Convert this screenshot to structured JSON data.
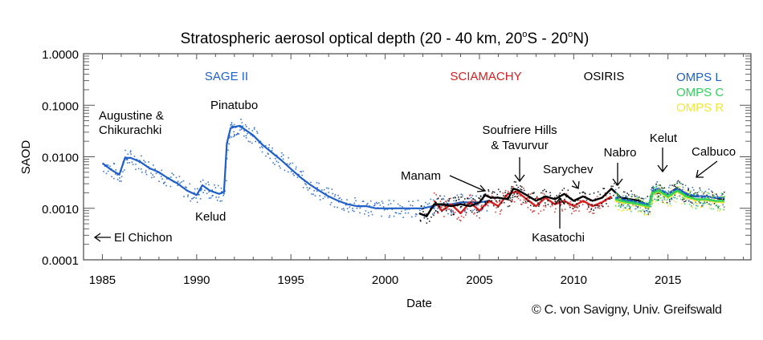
{
  "chart_data": {
    "type": "scatter",
    "title": "Stratospheric aerosol optical depth (20 - 40 km, 20°S - 20°N)",
    "title_parts": {
      "main": "Stratospheric aerosol optical depth (20 - 40 km, 20",
      "deg1": "o",
      "mid": "S - 20",
      "deg2": "o",
      "end": "N)"
    },
    "xlabel": "Date",
    "ylabel": "SAOD",
    "yscale": "log",
    "xlim": [
      1984.0,
      2019.4
    ],
    "ylim": [
      0.0001,
      1.0
    ],
    "xticks": [
      1985,
      1990,
      1995,
      2000,
      2005,
      2010,
      2015
    ],
    "xtick_labels": [
      "1985",
      "1990",
      "1995",
      "2000",
      "2005",
      "2010",
      "2015"
    ],
    "yticks": [
      1.0,
      0.1,
      0.01,
      0.001,
      0.0001
    ],
    "ytick_labels": [
      "1.0000",
      "0.1000",
      "0.0100",
      "0.0010",
      "0.0001"
    ],
    "instrument_labels": [
      {
        "name": "SAGE II",
        "color": "#1f5fc8"
      },
      {
        "name": "SCIAMACHY",
        "color": "#d42020"
      },
      {
        "name": "OSIRIS",
        "color": "#000000"
      },
      {
        "name": "OMPS L",
        "color": "#1f5fc8"
      },
      {
        "name": "OMPS C",
        "color": "#2fd35a"
      },
      {
        "name": "OMPS R",
        "color": "#f2e83a"
      }
    ],
    "series": [
      {
        "name": "SAGE II",
        "color": "#1f5fc8",
        "x": [
          1985.0,
          1985.5,
          1985.9,
          1986.2,
          1986.5,
          1987.0,
          1987.5,
          1988.0,
          1988.5,
          1989.0,
          1989.5,
          1990.0,
          1990.3,
          1990.7,
          1991.2,
          1991.45,
          1991.6,
          1991.8,
          1992.0,
          1992.3,
          1992.6,
          1993.0,
          1993.5,
          1994.0,
          1994.5,
          1995.0,
          1995.5,
          1996.0,
          1996.5,
          1997.0,
          1997.5,
          1998.0,
          1998.5,
          1999.0,
          1999.5,
          2000.0,
          2000.5,
          2001.0,
          2001.5,
          2002.0,
          2002.5,
          2003.0,
          2003.5,
          2004.0,
          2004.5,
          2005.0,
          2005.5
        ],
        "y": [
          0.0075,
          0.0055,
          0.0045,
          0.0095,
          0.0095,
          0.008,
          0.006,
          0.005,
          0.0038,
          0.003,
          0.0022,
          0.0018,
          0.0028,
          0.0022,
          0.0019,
          0.0021,
          0.018,
          0.036,
          0.038,
          0.04,
          0.033,
          0.026,
          0.017,
          0.012,
          0.0085,
          0.0058,
          0.004,
          0.0029,
          0.0022,
          0.0017,
          0.0014,
          0.0012,
          0.0011,
          0.0011,
          0.001,
          0.001,
          0.001,
          0.001,
          0.001,
          0.001,
          0.0011,
          0.0012,
          0.0012,
          0.0013,
          0.0013,
          0.0013,
          0.0014
        ]
      },
      {
        "name": "SCIAMACHY",
        "color": "#d42020",
        "x": [
          2002.6,
          2003.0,
          2003.5,
          2004.0,
          2004.5,
          2005.0,
          2005.5,
          2006.0,
          2006.5,
          2007.0,
          2007.5,
          2008.0,
          2008.5,
          2009.0,
          2009.5,
          2010.0,
          2010.5,
          2011.0,
          2011.5,
          2012.0
        ],
        "y": [
          0.0014,
          0.0009,
          0.0012,
          0.0008,
          0.0013,
          0.0009,
          0.0014,
          0.0011,
          0.0019,
          0.0021,
          0.0015,
          0.0011,
          0.0016,
          0.0012,
          0.0014,
          0.0011,
          0.0014,
          0.0011,
          0.0013,
          0.0017
        ]
      },
      {
        "name": "OSIRIS",
        "color": "#000000",
        "x": [
          2001.8,
          2002.2,
          2002.6,
          2003.0,
          2003.5,
          2004.0,
          2004.5,
          2005.0,
          2005.3,
          2005.6,
          2006.0,
          2006.5,
          2006.8,
          2007.0,
          2007.5,
          2008.0,
          2008.5,
          2009.0,
          2009.5,
          2010.0,
          2010.5,
          2011.0,
          2011.5,
          2012.0,
          2012.5,
          2013.0,
          2013.5,
          2014.0,
          2014.2,
          2014.5,
          2015.0,
          2015.5,
          2016.0,
          2016.5,
          2017.0,
          2017.5,
          2018.0
        ],
        "y": [
          0.0008,
          0.0007,
          0.0012,
          0.0012,
          0.0011,
          0.0012,
          0.0011,
          0.0013,
          0.0018,
          0.0016,
          0.0016,
          0.0015,
          0.0024,
          0.0023,
          0.0018,
          0.0014,
          0.0017,
          0.0015,
          0.0019,
          0.0014,
          0.0017,
          0.0014,
          0.0016,
          0.0024,
          0.0016,
          0.0015,
          0.0014,
          0.0011,
          0.0022,
          0.002,
          0.0019,
          0.0025,
          0.0018,
          0.0017,
          0.0017,
          0.0016,
          0.0015
        ]
      },
      {
        "name": "OMPS L",
        "color": "#1f5fc8",
        "x": [
          2012.2,
          2012.5,
          2013.0,
          2013.5,
          2014.0,
          2014.2,
          2014.5,
          2015.0,
          2015.5,
          2016.0,
          2016.5,
          2017.0,
          2017.5,
          2018.0
        ],
        "y": [
          0.0016,
          0.0015,
          0.0014,
          0.0013,
          0.0012,
          0.0022,
          0.0024,
          0.0019,
          0.0024,
          0.0019,
          0.0017,
          0.0017,
          0.0016,
          0.0016
        ]
      },
      {
        "name": "OMPS C",
        "color": "#2fd35a",
        "x": [
          2012.2,
          2012.5,
          2013.0,
          2013.5,
          2014.0,
          2014.2,
          2014.5,
          2015.0,
          2015.5,
          2016.0,
          2016.5,
          2017.0,
          2017.5,
          2018.0
        ],
        "y": [
          0.0015,
          0.0014,
          0.0013,
          0.0012,
          0.0011,
          0.002,
          0.0022,
          0.0017,
          0.0022,
          0.0017,
          0.0015,
          0.0015,
          0.0014,
          0.0014
        ]
      },
      {
        "name": "OMPS R",
        "color": "#e4e030",
        "x": [
          2012.2,
          2012.5,
          2013.0,
          2013.5,
          2014.0,
          2014.2,
          2014.5,
          2015.0,
          2015.5,
          2016.0,
          2016.5,
          2017.0,
          2017.5,
          2018.0
        ],
        "y": [
          0.0014,
          0.0013,
          0.00125,
          0.00115,
          0.00105,
          0.0019,
          0.0021,
          0.0016,
          0.0021,
          0.0016,
          0.00145,
          0.00145,
          0.00135,
          0.0013
        ]
      }
    ],
    "annotations": [
      {
        "text": [
          "Augustine &",
          "Chikurachki"
        ],
        "x": 1986.3,
        "y": 0.0095
      },
      {
        "text": [
          "Pinatubo"
        ],
        "x": 1992.0,
        "y": 0.04
      },
      {
        "text": [
          "Kelud"
        ],
        "x": 1990.3,
        "y": 0.0028
      },
      {
        "text": [
          "El Chichon"
        ],
        "x": 1984.2,
        "y": 0.0003,
        "arrow": "left"
      },
      {
        "text": [
          "Manam"
        ],
        "x": 2005.0,
        "y": 0.0017,
        "arrow": "pointing"
      },
      {
        "text": [
          "Soufriere Hills",
          "& Tavurvur"
        ],
        "x": 2006.8,
        "y": 0.0024,
        "arrow": "down"
      },
      {
        "text": [
          "Sarychev"
        ],
        "x": 2009.5,
        "y": 0.0019,
        "arrow": "pointing"
      },
      {
        "text": [
          "Kasatochi"
        ],
        "x": 2008.5,
        "y": 0.0016,
        "arrow": "up"
      },
      {
        "text": [
          "Nabro"
        ],
        "x": 2011.5,
        "y": 0.0024,
        "arrow": "down"
      },
      {
        "text": [
          "Kelut"
        ],
        "x": 2014.2,
        "y": 0.0045,
        "arrow": "down"
      },
      {
        "text": [
          "Calbuco"
        ],
        "x": 2015.3,
        "y": 0.0028,
        "arrow": "pointing"
      }
    ],
    "grid": false,
    "legend": "top (instrument names as colored text labels)"
  },
  "credit": "© C. von Savigny, Univ. Greifswald"
}
